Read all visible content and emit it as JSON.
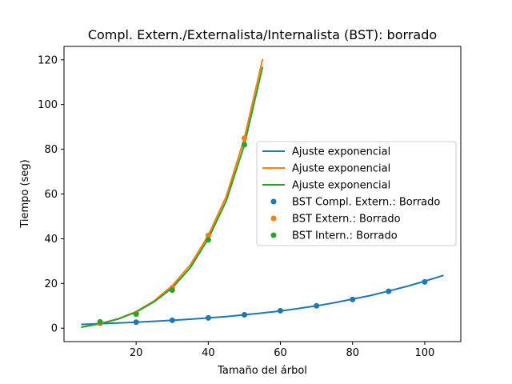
{
  "chart_data": {
    "type": "scatter",
    "title": "Compl. Extern./Externalista/Internalista (BST): borrado",
    "xlabel": "Tamaño del árbol",
    "ylabel": "Tiempo (seg)",
    "xlim": [
      0.0,
      110.0
    ],
    "ylim": [
      -6.0,
      126.0
    ],
    "xticks": [
      20,
      40,
      60,
      80,
      100
    ],
    "yticks": [
      0,
      20,
      40,
      60,
      80,
      100,
      120
    ],
    "grid": false,
    "legend_position": "center-right",
    "fits": [
      {
        "name": "Ajuste exponencial",
        "color": "#1f77b4",
        "x": [
          5,
          10,
          15,
          20,
          25,
          30,
          35,
          40,
          45,
          50,
          55,
          60,
          65,
          70,
          75,
          80,
          85,
          90,
          95,
          100,
          105
        ],
        "y": [
          1.7,
          2.0,
          2.3,
          2.7,
          3.1,
          3.5,
          4.0,
          4.6,
          5.2,
          6.0,
          6.8,
          7.7,
          8.8,
          10.0,
          11.4,
          13.0,
          14.6,
          16.6,
          18.7,
          21.0,
          23.5
        ]
      },
      {
        "name": "Ajuste exponencial",
        "color": "#ff7f0e",
        "x": [
          5,
          10,
          15,
          20,
          25,
          30,
          35,
          40,
          45,
          50,
          55
        ],
        "y": [
          0.5,
          2.0,
          4.2,
          7.4,
          12.2,
          19.0,
          28.3,
          41.5,
          59.0,
          85.0,
          120.0
        ]
      },
      {
        "name": "Ajuste exponencial",
        "color": "#2ca02c",
        "x": [
          5,
          10,
          15,
          20,
          25,
          30,
          35,
          40,
          45,
          50,
          55
        ],
        "y": [
          0.5,
          2.0,
          4.1,
          7.2,
          11.8,
          18.0,
          27.0,
          40.0,
          57.0,
          82.0,
          116.5
        ]
      }
    ],
    "series": [
      {
        "name": "BST Compl. Extern.: Borrado",
        "color": "#1f77b4",
        "x": [
          10,
          20,
          30,
          40,
          50,
          60,
          70,
          80,
          90,
          100
        ],
        "y": [
          2.2,
          2.7,
          3.5,
          4.6,
          6.0,
          7.8,
          10.0,
          12.8,
          16.5,
          20.7
        ]
      },
      {
        "name": "BST Extern.: Borrado",
        "color": "#ff7f0e",
        "x": [
          10,
          20,
          30,
          40,
          50
        ],
        "y": [
          2.2,
          6.5,
          18.0,
          41.5,
          85.0
        ]
      },
      {
        "name": "BST Intern.: Borrado",
        "color": "#2ca02c",
        "x": [
          10,
          20,
          30,
          40,
          50
        ],
        "y": [
          2.8,
          6.3,
          17.0,
          39.5,
          82.0
        ]
      }
    ]
  }
}
